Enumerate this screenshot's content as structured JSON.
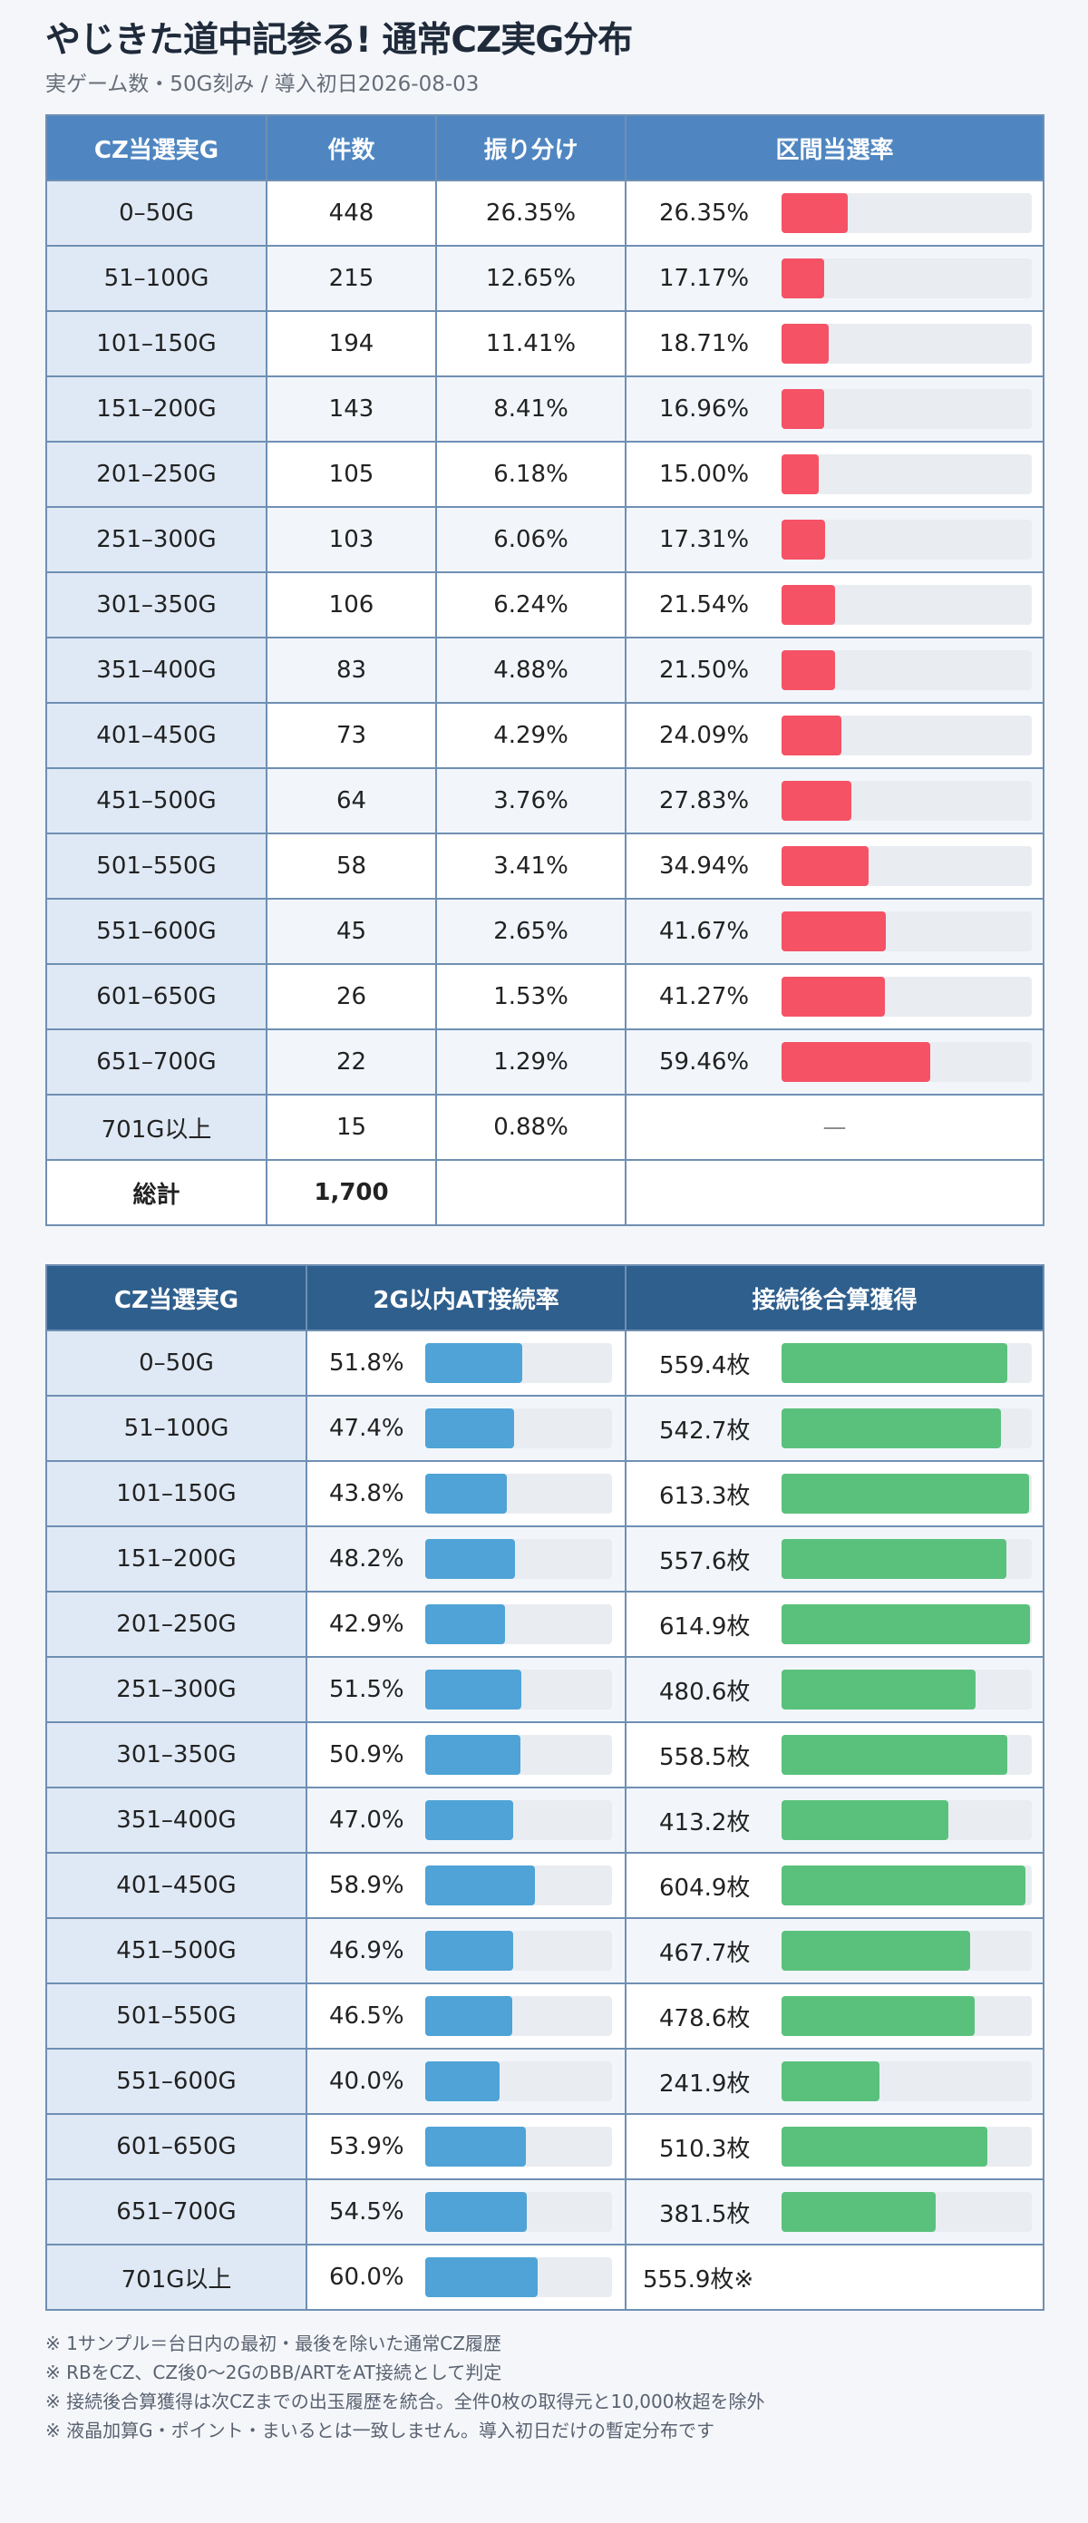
{
  "title": "やじきた道中記参る! 通常CZ実G分布",
  "subtitle": "実ゲーム数・50G刻み / 導入初日2026-08-03",
  "colors": {
    "rate_bar": "#f55266",
    "at_bar": "#4fa3d6",
    "coins_bar": "#5ac17c",
    "header1": "#4f86c1",
    "header2": "#2f5f8d"
  },
  "table1": {
    "headers": [
      "CZ当選実G",
      "件数",
      "振り分け",
      "区間当選率"
    ],
    "rows": [
      {
        "range": "0–50G",
        "count": "448",
        "share": "26.35%",
        "rate": 26.35,
        "rate_label": "26.35%"
      },
      {
        "range": "51–100G",
        "count": "215",
        "share": "12.65%",
        "rate": 17.17,
        "rate_label": "17.17%"
      },
      {
        "range": "101–150G",
        "count": "194",
        "share": "11.41%",
        "rate": 18.71,
        "rate_label": "18.71%"
      },
      {
        "range": "151–200G",
        "count": "143",
        "share": "8.41%",
        "rate": 16.96,
        "rate_label": "16.96%"
      },
      {
        "range": "201–250G",
        "count": "105",
        "share": "6.18%",
        "rate": 15.0,
        "rate_label": "15.00%"
      },
      {
        "range": "251–300G",
        "count": "103",
        "share": "6.06%",
        "rate": 17.31,
        "rate_label": "17.31%"
      },
      {
        "range": "301–350G",
        "count": "106",
        "share": "6.24%",
        "rate": 21.54,
        "rate_label": "21.54%"
      },
      {
        "range": "351–400G",
        "count": "83",
        "share": "4.88%",
        "rate": 21.5,
        "rate_label": "21.50%"
      },
      {
        "range": "401–450G",
        "count": "73",
        "share": "4.29%",
        "rate": 24.09,
        "rate_label": "24.09%"
      },
      {
        "range": "451–500G",
        "count": "64",
        "share": "3.76%",
        "rate": 27.83,
        "rate_label": "27.83%"
      },
      {
        "range": "501–550G",
        "count": "58",
        "share": "3.41%",
        "rate": 34.94,
        "rate_label": "34.94%"
      },
      {
        "range": "551–600G",
        "count": "45",
        "share": "2.65%",
        "rate": 41.67,
        "rate_label": "41.67%"
      },
      {
        "range": "601–650G",
        "count": "26",
        "share": "1.53%",
        "rate": 41.27,
        "rate_label": "41.27%"
      },
      {
        "range": "651–700G",
        "count": "22",
        "share": "1.29%",
        "rate": 59.46,
        "rate_label": "59.46%"
      },
      {
        "range": "701G以上",
        "count": "15",
        "share": "0.88%",
        "rate": null,
        "rate_label": "—"
      }
    ],
    "total_label": "総計",
    "total_count": "1,700"
  },
  "table2": {
    "headers": [
      "CZ当選実G",
      "2G以内AT接続率",
      "接続後合算獲得"
    ],
    "rows": [
      {
        "range": "0–50G",
        "at": 51.8,
        "at_label": "51.8%",
        "coins": 559.4,
        "coins_label": "559.4枚"
      },
      {
        "range": "51–100G",
        "at": 47.4,
        "at_label": "47.4%",
        "coins": 542.7,
        "coins_label": "542.7枚"
      },
      {
        "range": "101–150G",
        "at": 43.8,
        "at_label": "43.8%",
        "coins": 613.3,
        "coins_label": "613.3枚"
      },
      {
        "range": "151–200G",
        "at": 48.2,
        "at_label": "48.2%",
        "coins": 557.6,
        "coins_label": "557.6枚"
      },
      {
        "range": "201–250G",
        "at": 42.9,
        "at_label": "42.9%",
        "coins": 614.9,
        "coins_label": "614.9枚"
      },
      {
        "range": "251–300G",
        "at": 51.5,
        "at_label": "51.5%",
        "coins": 480.6,
        "coins_label": "480.6枚"
      },
      {
        "range": "301–350G",
        "at": 50.9,
        "at_label": "50.9%",
        "coins": 558.5,
        "coins_label": "558.5枚"
      },
      {
        "range": "351–400G",
        "at": 47.0,
        "at_label": "47.0%",
        "coins": 413.2,
        "coins_label": "413.2枚"
      },
      {
        "range": "401–450G",
        "at": 58.9,
        "at_label": "58.9%",
        "coins": 604.9,
        "coins_label": "604.9枚"
      },
      {
        "range": "451–500G",
        "at": 46.9,
        "at_label": "46.9%",
        "coins": 467.7,
        "coins_label": "467.7枚"
      },
      {
        "range": "501–550G",
        "at": 46.5,
        "at_label": "46.5%",
        "coins": 478.6,
        "coins_label": "478.6枚"
      },
      {
        "range": "551–600G",
        "at": 40.0,
        "at_label": "40.0%",
        "coins": 241.9,
        "coins_label": "241.9枚"
      },
      {
        "range": "601–650G",
        "at": 53.9,
        "at_label": "53.9%",
        "coins": 510.3,
        "coins_label": "510.3枚"
      },
      {
        "range": "651–700G",
        "at": 54.5,
        "at_label": "54.5%",
        "coins": 381.5,
        "coins_label": "381.5枚"
      },
      {
        "range": "701G以上",
        "at": 60.0,
        "at_label": "60.0%",
        "coins": null,
        "coins_label": "555.9枚※"
      }
    ]
  },
  "notes": [
    "※ 1サンプル＝台日内の最初・最後を除いた通常CZ履歴",
    "※ RBをCZ、CZ後0〜2GのBB/ARTをAT接続として判定",
    "※ 接続後合算獲得は次CZまでの出玉履歴を統合。全件0枚の取得元と10,000枚超を除外",
    "※ 液晶加算G・ポイント・まいるとは一致しません。導入初日だけの暫定分布です"
  ],
  "chart_data": [
    {
      "type": "table",
      "title": "やじきた道中記参る! 通常CZ実G分布",
      "categories": [
        "0–50G",
        "51–100G",
        "101–150G",
        "151–200G",
        "201–250G",
        "251–300G",
        "301–350G",
        "351–400G",
        "401–450G",
        "451–500G",
        "501–550G",
        "551–600G",
        "601–650G",
        "651–700G",
        "701G以上"
      ],
      "series": [
        {
          "name": "件数",
          "values": [
            448,
            215,
            194,
            143,
            105,
            103,
            106,
            83,
            73,
            64,
            58,
            45,
            26,
            22,
            15
          ]
        },
        {
          "name": "振り分け",
          "values": [
            26.35,
            12.65,
            11.41,
            8.41,
            6.18,
            6.06,
            6.24,
            4.88,
            4.29,
            3.76,
            3.41,
            2.65,
            1.53,
            1.29,
            0.88
          ]
        },
        {
          "name": "区間当選率",
          "values": [
            26.35,
            17.17,
            18.71,
            16.96,
            15.0,
            17.31,
            21.54,
            21.5,
            24.09,
            27.83,
            34.94,
            41.67,
            41.27,
            59.46,
            null
          ]
        }
      ]
    },
    {
      "type": "table",
      "categories": [
        "0–50G",
        "51–100G",
        "101–150G",
        "151–200G",
        "201–250G",
        "251–300G",
        "301–350G",
        "351–400G",
        "401–450G",
        "451–500G",
        "501–550G",
        "551–600G",
        "601–650G",
        "651–700G",
        "701G以上"
      ],
      "series": [
        {
          "name": "2G以内AT接続率",
          "values": [
            51.8,
            47.4,
            43.8,
            48.2,
            42.9,
            51.5,
            50.9,
            47.0,
            58.9,
            46.9,
            46.5,
            40.0,
            53.9,
            54.5,
            60.0
          ]
        },
        {
          "name": "接続後合算獲得",
          "values": [
            559.4,
            542.7,
            613.3,
            557.6,
            614.9,
            480.6,
            558.5,
            413.2,
            604.9,
            467.7,
            478.6,
            241.9,
            510.3,
            381.5,
            555.9
          ]
        }
      ]
    }
  ]
}
